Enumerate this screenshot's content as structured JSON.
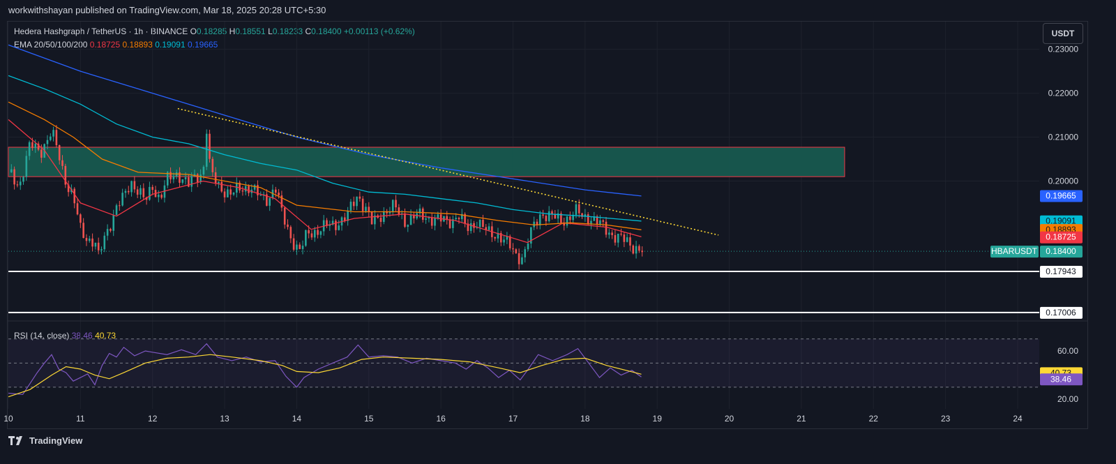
{
  "header": {
    "publisher_line": "workwithshayan published on TradingView.com, Mar 18, 2025 20:28 UTC+5:30"
  },
  "legend": {
    "symbol": "Hedera Hashgraph / TetherUS · 1h · BINANCE",
    "o_label": "O",
    "o_value": "0.18285",
    "h_label": "H",
    "h_value": "0.18551",
    "l_label": "L",
    "l_value": "0.18233",
    "c_label": "C",
    "c_value": "0.18400",
    "change": "+0.00113 (+0.62%)",
    "ema_label": "EMA 20/50/100/200",
    "ema20": "0.18725",
    "ema50": "0.18893",
    "ema100": "0.19091",
    "ema200": "0.19665"
  },
  "currency_button": "USDT",
  "colors": {
    "bg": "#131722",
    "up": "#26a69a",
    "down": "#ef5350",
    "ema20": "#f23645",
    "ema50": "#f57c00",
    "ema100": "#00bcd4",
    "ema200": "#2962ff",
    "rsi": "#7e57c2",
    "rsi_ma": "#fdd835",
    "zone_fill": "#17594f",
    "zone_border": "#f23645"
  },
  "footer": {
    "brand": "TradingView",
    "logo_icon": "tradingview-logo-icon"
  },
  "chart_data": {
    "type": "candlestick",
    "title": "Hedera Hashgraph / TetherUS · 1h · BINANCE",
    "x_tick_labels": [
      "10",
      "11",
      "12",
      "13",
      "14",
      "15",
      "16",
      "17",
      "18",
      "19",
      "20",
      "21",
      "22",
      "23",
      "24"
    ],
    "x_range_days": [
      10,
      24.3
    ],
    "ylim": [
      0.1683,
      0.2363
    ],
    "y_tick_labels": [
      "0.23000",
      "0.22000",
      "0.21000",
      "0.20000"
    ],
    "close_path": [
      [
        10.0,
        0.202
      ],
      [
        10.15,
        0.199
      ],
      [
        10.3,
        0.208
      ],
      [
        10.45,
        0.207
      ],
      [
        10.6,
        0.211
      ],
      [
        10.7,
        0.206
      ],
      [
        10.8,
        0.2
      ],
      [
        10.9,
        0.196
      ],
      [
        11.0,
        0.189
      ],
      [
        11.1,
        0.187
      ],
      [
        11.2,
        0.186
      ],
      [
        11.25,
        0.1825
      ],
      [
        11.35,
        0.188
      ],
      [
        11.5,
        0.194
      ],
      [
        11.6,
        0.196
      ],
      [
        11.7,
        0.2
      ],
      [
        11.8,
        0.198
      ],
      [
        11.9,
        0.195
      ],
      [
        12.0,
        0.199
      ],
      [
        12.1,
        0.196
      ],
      [
        12.2,
        0.2
      ],
      [
        12.35,
        0.202
      ],
      [
        12.5,
        0.199
      ],
      [
        12.6,
        0.201
      ],
      [
        12.7,
        0.202
      ],
      [
        12.75,
        0.212
      ],
      [
        12.8,
        0.202
      ],
      [
        12.9,
        0.199
      ],
      [
        13.0,
        0.198
      ],
      [
        13.1,
        0.197
      ],
      [
        13.2,
        0.198
      ],
      [
        13.35,
        0.199
      ],
      [
        13.5,
        0.196
      ],
      [
        13.6,
        0.196
      ],
      [
        13.7,
        0.199
      ],
      [
        13.8,
        0.192
      ],
      [
        13.9,
        0.188
      ],
      [
        14.0,
        0.185
      ],
      [
        14.05,
        0.184
      ],
      [
        14.15,
        0.188
      ],
      [
        14.3,
        0.189
      ],
      [
        14.5,
        0.19
      ],
      [
        14.7,
        0.192
      ],
      [
        14.85,
        0.197
      ],
      [
        14.95,
        0.194
      ],
      [
        15.05,
        0.19
      ],
      [
        15.2,
        0.193
      ],
      [
        15.35,
        0.194
      ],
      [
        15.5,
        0.191
      ],
      [
        15.65,
        0.192
      ],
      [
        15.8,
        0.192
      ],
      [
        15.95,
        0.191
      ],
      [
        16.1,
        0.191
      ],
      [
        16.25,
        0.192
      ],
      [
        16.35,
        0.189
      ],
      [
        16.5,
        0.191
      ],
      [
        16.65,
        0.188
      ],
      [
        16.8,
        0.188
      ],
      [
        16.95,
        0.185
      ],
      [
        17.05,
        0.183
      ],
      [
        17.15,
        0.183
      ],
      [
        17.2,
        0.186
      ],
      [
        17.3,
        0.19
      ],
      [
        17.4,
        0.193
      ],
      [
        17.5,
        0.192
      ],
      [
        17.65,
        0.191
      ],
      [
        17.8,
        0.192
      ],
      [
        17.9,
        0.193
      ],
      [
        17.95,
        0.192
      ],
      [
        18.05,
        0.192
      ],
      [
        18.2,
        0.19
      ],
      [
        18.3,
        0.189
      ],
      [
        18.45,
        0.187
      ],
      [
        18.6,
        0.186
      ],
      [
        18.7,
        0.185
      ],
      [
        18.78,
        0.184
      ]
    ],
    "ema_series": [
      {
        "name": "EMA 20",
        "color": "#f23645",
        "points": [
          [
            10.0,
            0.214
          ],
          [
            10.5,
            0.207
          ],
          [
            11.0,
            0.195
          ],
          [
            11.5,
            0.192
          ],
          [
            12.0,
            0.197
          ],
          [
            12.7,
            0.2
          ],
          [
            13.2,
            0.1985
          ],
          [
            13.7,
            0.196
          ],
          [
            14.2,
            0.189
          ],
          [
            14.8,
            0.1915
          ],
          [
            15.5,
            0.1925
          ],
          [
            16.2,
            0.191
          ],
          [
            16.8,
            0.188
          ],
          [
            17.2,
            0.186
          ],
          [
            17.7,
            0.1905
          ],
          [
            18.3,
            0.1895
          ],
          [
            18.78,
            0.1873
          ]
        ]
      },
      {
        "name": "EMA 50",
        "color": "#f57c00",
        "points": [
          [
            10.0,
            0.218
          ],
          [
            10.5,
            0.214
          ],
          [
            10.9,
            0.21
          ],
          [
            11.3,
            0.205
          ],
          [
            11.8,
            0.202
          ],
          [
            12.5,
            0.2015
          ],
          [
            13.0,
            0.2
          ],
          [
            13.5,
            0.1985
          ],
          [
            14.0,
            0.1945
          ],
          [
            14.8,
            0.193
          ],
          [
            15.5,
            0.193
          ],
          [
            16.2,
            0.1925
          ],
          [
            16.8,
            0.191
          ],
          [
            17.3,
            0.19
          ],
          [
            17.8,
            0.1905
          ],
          [
            18.3,
            0.19
          ],
          [
            18.78,
            0.1889
          ]
        ]
      },
      {
        "name": "EMA 100",
        "color": "#00bcd4",
        "points": [
          [
            10.0,
            0.224
          ],
          [
            10.5,
            0.221
          ],
          [
            11.0,
            0.2175
          ],
          [
            11.5,
            0.213
          ],
          [
            12.0,
            0.21
          ],
          [
            12.5,
            0.2085
          ],
          [
            13.0,
            0.206
          ],
          [
            13.5,
            0.204
          ],
          [
            14.0,
            0.2025
          ],
          [
            14.5,
            0.1995
          ],
          [
            15.0,
            0.1975
          ],
          [
            15.5,
            0.197
          ],
          [
            16.0,
            0.196
          ],
          [
            16.5,
            0.195
          ],
          [
            17.0,
            0.1935
          ],
          [
            17.5,
            0.1925
          ],
          [
            18.0,
            0.192
          ],
          [
            18.78,
            0.1909
          ]
        ]
      },
      {
        "name": "EMA 200",
        "color": "#2962ff",
        "points": [
          [
            10.0,
            0.231
          ],
          [
            11.0,
            0.225
          ],
          [
            12.0,
            0.22
          ],
          [
            13.0,
            0.215
          ],
          [
            14.0,
            0.21
          ],
          [
            15.0,
            0.206
          ],
          [
            16.0,
            0.203
          ],
          [
            17.0,
            0.2005
          ],
          [
            18.0,
            0.198
          ],
          [
            18.78,
            0.1966
          ]
        ]
      }
    ],
    "supply_zone": {
      "y_range": [
        0.201,
        0.2077
      ],
      "x_range": [
        10.0,
        21.6
      ]
    },
    "trendline": {
      "from": [
        12.35,
        0.2165
      ],
      "to": [
        19.85,
        0.1877
      ],
      "style": "dotted",
      "color": "#fdd835"
    },
    "support_levels": [
      0.17943,
      0.17006
    ],
    "price_labels": [
      {
        "text": "0.19665",
        "value": 0.19665,
        "bg": "#2962ff",
        "fg": "#ffffff"
      },
      {
        "text": "0.19091",
        "value": 0.19091,
        "bg": "#00bcd4",
        "fg": "#131722"
      },
      {
        "text": "0.18893",
        "value": 0.18893,
        "bg": "#f57c00",
        "fg": "#131722"
      },
      {
        "text": "0.18725",
        "value": 0.18725,
        "bg": "#f23645",
        "fg": "#ffffff"
      },
      {
        "text": "0.18400",
        "value": 0.184,
        "bg": "#26a69a",
        "fg": "#ffffff"
      },
      {
        "text": "0.17943",
        "value": 0.17943,
        "bg": "#ffffff",
        "fg": "#131722"
      },
      {
        "text": "0.17006",
        "value": 0.17006,
        "bg": "#ffffff",
        "fg": "#131722"
      }
    ],
    "symbol_tag": "HBARUSDT",
    "last_price": 0.184,
    "rsi": {
      "label": "RSI (14, close)",
      "value": "38.46",
      "ma_value": "40.73",
      "ylim": [
        12,
        82
      ],
      "y_tick_labels": [
        "60.00",
        "20.00"
      ],
      "band": [
        30,
        70
      ],
      "mid": 50,
      "line": [
        [
          10.0,
          25
        ],
        [
          10.2,
          24
        ],
        [
          10.4,
          42
        ],
        [
          10.5,
          50
        ],
        [
          10.6,
          57
        ],
        [
          10.7,
          45
        ],
        [
          10.8,
          42
        ],
        [
          10.9,
          35
        ],
        [
          11.0,
          38
        ],
        [
          11.1,
          41
        ],
        [
          11.2,
          32
        ],
        [
          11.3,
          48
        ],
        [
          11.4,
          58
        ],
        [
          11.5,
          55
        ],
        [
          11.6,
          63
        ],
        [
          11.75,
          56
        ],
        [
          11.9,
          60
        ],
        [
          12.0,
          59
        ],
        [
          12.2,
          57
        ],
        [
          12.4,
          61
        ],
        [
          12.6,
          57
        ],
        [
          12.75,
          66
        ],
        [
          12.9,
          55
        ],
        [
          13.1,
          52
        ],
        [
          13.3,
          55
        ],
        [
          13.5,
          51
        ],
        [
          13.7,
          52
        ],
        [
          13.85,
          39
        ],
        [
          14.0,
          30
        ],
        [
          14.1,
          38
        ],
        [
          14.3,
          45
        ],
        [
          14.5,
          50
        ],
        [
          14.7,
          55
        ],
        [
          14.85,
          65
        ],
        [
          15.0,
          55
        ],
        [
          15.2,
          56
        ],
        [
          15.4,
          55
        ],
        [
          15.6,
          50
        ],
        [
          15.8,
          54
        ],
        [
          16.0,
          52
        ],
        [
          16.2,
          50
        ],
        [
          16.35,
          45
        ],
        [
          16.5,
          52
        ],
        [
          16.65,
          46
        ],
        [
          16.8,
          38
        ],
        [
          16.95,
          44
        ],
        [
          17.1,
          36
        ],
        [
          17.2,
          44
        ],
        [
          17.35,
          57
        ],
        [
          17.55,
          52
        ],
        [
          17.75,
          57
        ],
        [
          17.9,
          62
        ],
        [
          18.05,
          50
        ],
        [
          18.2,
          38
        ],
        [
          18.35,
          46
        ],
        [
          18.5,
          40
        ],
        [
          18.65,
          44
        ],
        [
          18.78,
          38.46
        ]
      ],
      "ma": [
        [
          10.0,
          22
        ],
        [
          10.3,
          28
        ],
        [
          10.6,
          40
        ],
        [
          10.8,
          47
        ],
        [
          11.0,
          45
        ],
        [
          11.2,
          40
        ],
        [
          11.4,
          37
        ],
        [
          11.6,
          42
        ],
        [
          11.9,
          50
        ],
        [
          12.2,
          54
        ],
        [
          12.5,
          55
        ],
        [
          12.8,
          57
        ],
        [
          13.1,
          55
        ],
        [
          13.5,
          52
        ],
        [
          13.8,
          48
        ],
        [
          14.0,
          43
        ],
        [
          14.3,
          42
        ],
        [
          14.6,
          46
        ],
        [
          14.9,
          53
        ],
        [
          15.2,
          55
        ],
        [
          15.6,
          54
        ],
        [
          16.0,
          53
        ],
        [
          16.4,
          51
        ],
        [
          16.8,
          46
        ],
        [
          17.1,
          42
        ],
        [
          17.4,
          48
        ],
        [
          17.7,
          53
        ],
        [
          18.0,
          54
        ],
        [
          18.3,
          48
        ],
        [
          18.78,
          40.73
        ]
      ]
    }
  }
}
